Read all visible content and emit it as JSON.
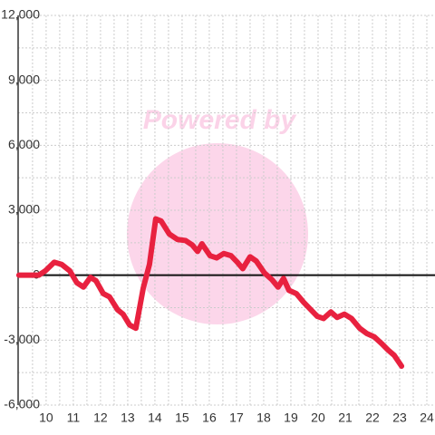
{
  "chart_data": {
    "type": "line",
    "watermark": "Powered by",
    "x": [
      9.0,
      9.73,
      9.97,
      10.3,
      10.57,
      10.87,
      11.13,
      11.37,
      11.63,
      11.83,
      12.1,
      12.33,
      12.63,
      12.83,
      13.07,
      13.3,
      13.57,
      13.8,
      14.03,
      14.23,
      14.53,
      14.83,
      15.13,
      15.37,
      15.57,
      15.73,
      16.03,
      16.27,
      16.53,
      16.8,
      17.03,
      17.23,
      17.5,
      17.73,
      18.03,
      18.3,
      18.53,
      18.73,
      18.93,
      19.2,
      19.47,
      19.7,
      19.97,
      20.2,
      20.47,
      20.7,
      20.97,
      21.23,
      21.53,
      21.8,
      22.07,
      22.33,
      22.57,
      22.8,
      23.07
    ],
    "series": [
      {
        "color": "#e8213f",
        "values": [
          0,
          0,
          200,
          600,
          500,
          200,
          -350,
          -550,
          -100,
          -250,
          -850,
          -1000,
          -1600,
          -1800,
          -2300,
          -2450,
          -600,
          500,
          2600,
          2500,
          1900,
          1650,
          1600,
          1400,
          1100,
          1450,
          900,
          800,
          1000,
          900,
          600,
          300,
          850,
          650,
          100,
          -200,
          -550,
          -150,
          -700,
          -850,
          -1250,
          -1550,
          -1900,
          -2000,
          -1700,
          -1950,
          -1800,
          -2000,
          -2450,
          -2700,
          -2850,
          -3150,
          -3450,
          -3700,
          -4200
        ]
      }
    ],
    "xlim": [
      8.97,
      24.3
    ],
    "ylim": [
      -6000,
      12000
    ],
    "xticks": [
      10,
      11,
      12,
      13,
      14,
      15,
      16,
      17,
      18,
      19,
      20,
      21,
      22,
      23,
      24
    ],
    "yticks": [
      {
        "value": -6000,
        "label": "-6,000"
      },
      {
        "value": -3000,
        "label": "-3,000"
      },
      0,
      {
        "value": 3000,
        "label": "3,000"
      },
      {
        "value": 6000,
        "label": "6,000"
      },
      {
        "value": 9000,
        "label": "9,000"
      },
      {
        "value": 12000,
        "label": "12,000"
      }
    ],
    "minor_xticks": [
      9.5,
      10.5,
      11.5,
      12.5,
      13.5,
      14.5,
      15.5,
      16.5,
      17.5,
      18.5,
      19.5,
      20.5,
      21.5,
      22.5,
      23.5
    ],
    "minor_yticks": [
      -4500,
      -1500,
      1500,
      4500,
      7500,
      10500
    ],
    "grid": true
  }
}
